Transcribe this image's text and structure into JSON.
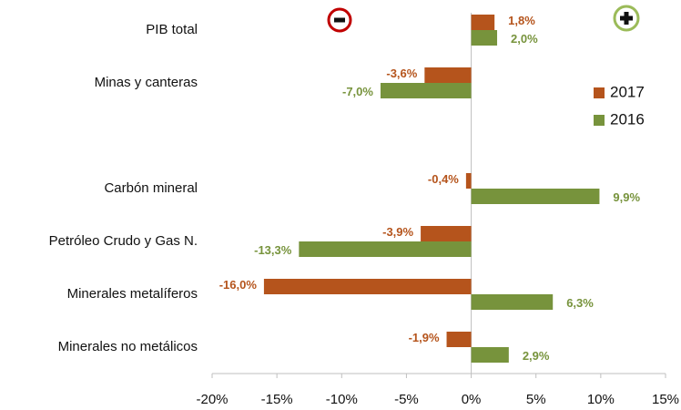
{
  "chart_data": {
    "type": "hbar",
    "categories": [
      "PIB total",
      "Minas y canteras",
      null,
      "Carbón mineral",
      "Petróleo Crudo y Gas N.",
      "Minerales metalíferos",
      "Minerales no metálicos"
    ],
    "series": [
      {
        "name": "2017",
        "color": "#b5541c",
        "values": [
          1.8,
          -3.6,
          null,
          -0.4,
          -3.9,
          -16.0,
          -1.9
        ],
        "value_labels": [
          "1,8%",
          "-3,6%",
          null,
          "-0,4%",
          "-3,9%",
          "-16,0%",
          "-1,9%"
        ]
      },
      {
        "name": "2016",
        "color": "#77933c",
        "values": [
          2.0,
          -7.0,
          null,
          9.9,
          -13.3,
          6.3,
          2.9
        ],
        "value_labels": [
          "2,0%",
          "-7,0%",
          null,
          "9,9%",
          "-13,3%",
          "6,3%",
          "2,9%"
        ]
      }
    ],
    "xlim": [
      -20,
      15
    ],
    "xticks": [
      {
        "value": -20,
        "label": "-20%"
      },
      {
        "value": -15,
        "label": "-15%"
      },
      {
        "value": -10,
        "label": "-10%"
      },
      {
        "value": -5,
        "label": "-5%"
      },
      {
        "value": 0,
        "label": "0%"
      },
      {
        "value": 5,
        "label": "5%"
      },
      {
        "value": 10,
        "label": "10%"
      },
      {
        "value": 15,
        "label": "15%"
      }
    ],
    "grid": false,
    "legend": "upper right"
  }
}
